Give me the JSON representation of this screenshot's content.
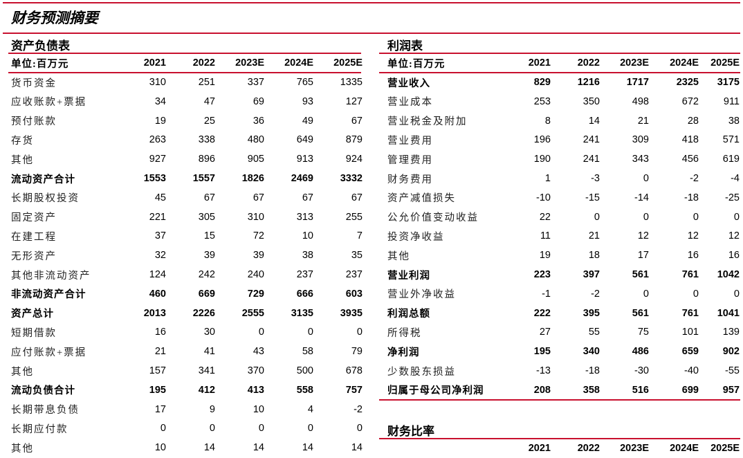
{
  "title": "财务预测摘要",
  "accent_color": "#c8102e",
  "balance_sheet": {
    "title": "资产负债表",
    "unit_label": "单位:百万元",
    "columns": [
      "2021",
      "2022",
      "2023E",
      "2024E",
      "2025E"
    ],
    "rows": [
      {
        "label": "货币资金",
        "values": [
          "310",
          "251",
          "337",
          "765",
          "1335"
        ],
        "bold": false
      },
      {
        "label": "应收账款+票据",
        "values": [
          "34",
          "47",
          "69",
          "93",
          "127"
        ],
        "bold": false
      },
      {
        "label": "预付账款",
        "values": [
          "19",
          "25",
          "36",
          "49",
          "67"
        ],
        "bold": false
      },
      {
        "label": "存货",
        "values": [
          "263",
          "338",
          "480",
          "649",
          "879"
        ],
        "bold": false
      },
      {
        "label": "其他",
        "values": [
          "927",
          "896",
          "905",
          "913",
          "924"
        ],
        "bold": false
      },
      {
        "label": "流动资产合计",
        "values": [
          "1553",
          "1557",
          "1826",
          "2469",
          "3332"
        ],
        "bold": true
      },
      {
        "label": "长期股权投资",
        "values": [
          "45",
          "67",
          "67",
          "67",
          "67"
        ],
        "bold": false
      },
      {
        "label": "固定资产",
        "values": [
          "221",
          "305",
          "310",
          "313",
          "255"
        ],
        "bold": false
      },
      {
        "label": "在建工程",
        "values": [
          "37",
          "15",
          "72",
          "10",
          "7"
        ],
        "bold": false
      },
      {
        "label": "无形资产",
        "values": [
          "32",
          "39",
          "39",
          "38",
          "35"
        ],
        "bold": false
      },
      {
        "label": "其他非流动资产",
        "values": [
          "124",
          "242",
          "240",
          "237",
          "237"
        ],
        "bold": false
      },
      {
        "label": "非流动资产合计",
        "values": [
          "460",
          "669",
          "729",
          "666",
          "603"
        ],
        "bold": true
      },
      {
        "label": "资产总计",
        "values": [
          "2013",
          "2226",
          "2555",
          "3135",
          "3935"
        ],
        "bold": true
      },
      {
        "label": "短期借款",
        "values": [
          "16",
          "30",
          "0",
          "0",
          "0"
        ],
        "bold": false
      },
      {
        "label": "应付账款+票据",
        "values": [
          "21",
          "41",
          "43",
          "58",
          "79"
        ],
        "bold": false
      },
      {
        "label": "其他",
        "values": [
          "157",
          "341",
          "370",
          "500",
          "678"
        ],
        "bold": false
      },
      {
        "label": "流动负债合计",
        "values": [
          "195",
          "412",
          "413",
          "558",
          "757"
        ],
        "bold": true
      },
      {
        "label": "长期带息负债",
        "values": [
          "17",
          "9",
          "10",
          "4",
          "-2"
        ],
        "bold": false
      },
      {
        "label": "长期应付款",
        "values": [
          "0",
          "0",
          "0",
          "0",
          "0"
        ],
        "bold": false
      },
      {
        "label": "其他",
        "values": [
          "10",
          "14",
          "14",
          "14",
          "14"
        ],
        "bold": false
      }
    ]
  },
  "income_statement": {
    "title": "利润表",
    "unit_label": "单位:百万元",
    "columns": [
      "2021",
      "2022",
      "2023E",
      "2024E",
      "2025E"
    ],
    "rows": [
      {
        "label": "营业收入",
        "values": [
          "829",
          "1216",
          "1717",
          "2325",
          "3175"
        ],
        "bold": true
      },
      {
        "label": "营业成本",
        "values": [
          "253",
          "350",
          "498",
          "672",
          "911"
        ],
        "bold": false
      },
      {
        "label": "营业税金及附加",
        "values": [
          "8",
          "14",
          "21",
          "28",
          "38"
        ],
        "bold": false
      },
      {
        "label": "营业费用",
        "values": [
          "196",
          "241",
          "309",
          "418",
          "571"
        ],
        "bold": false
      },
      {
        "label": "管理费用",
        "values": [
          "190",
          "241",
          "343",
          "456",
          "619"
        ],
        "bold": false
      },
      {
        "label": "财务费用",
        "values": [
          "1",
          "-3",
          "0",
          "-2",
          "-4"
        ],
        "bold": false
      },
      {
        "label": "资产减值损失",
        "values": [
          "-10",
          "-15",
          "-14",
          "-18",
          "-25"
        ],
        "bold": false
      },
      {
        "label": "公允价值变动收益",
        "values": [
          "22",
          "0",
          "0",
          "0",
          "0"
        ],
        "bold": false
      },
      {
        "label": "投资净收益",
        "values": [
          "11",
          "21",
          "12",
          "12",
          "12"
        ],
        "bold": false
      },
      {
        "label": "其他",
        "values": [
          "19",
          "18",
          "17",
          "16",
          "16"
        ],
        "bold": false
      },
      {
        "label": "营业利润",
        "values": [
          "223",
          "397",
          "561",
          "761",
          "1042"
        ],
        "bold": true
      },
      {
        "label": "营业外净收益",
        "values": [
          "-1",
          "-2",
          "0",
          "0",
          "0"
        ],
        "bold": false
      },
      {
        "label": "利润总额",
        "values": [
          "222",
          "395",
          "561",
          "761",
          "1041"
        ],
        "bold": true
      },
      {
        "label": "所得税",
        "values": [
          "27",
          "55",
          "75",
          "101",
          "139"
        ],
        "bold": false
      },
      {
        "label": "净利润",
        "values": [
          "195",
          "340",
          "486",
          "659",
          "902"
        ],
        "bold": true
      },
      {
        "label": "少数股东损益",
        "values": [
          "-13",
          "-18",
          "-30",
          "-40",
          "-55"
        ],
        "bold": false
      },
      {
        "label": "归属于母公司净利润",
        "values": [
          "208",
          "358",
          "516",
          "699",
          "957"
        ],
        "bold": true
      }
    ]
  },
  "ratios": {
    "title": "财务比率",
    "unit_label": "",
    "columns": [
      "2021",
      "2022",
      "2023E",
      "2024E",
      "2025E"
    ]
  }
}
